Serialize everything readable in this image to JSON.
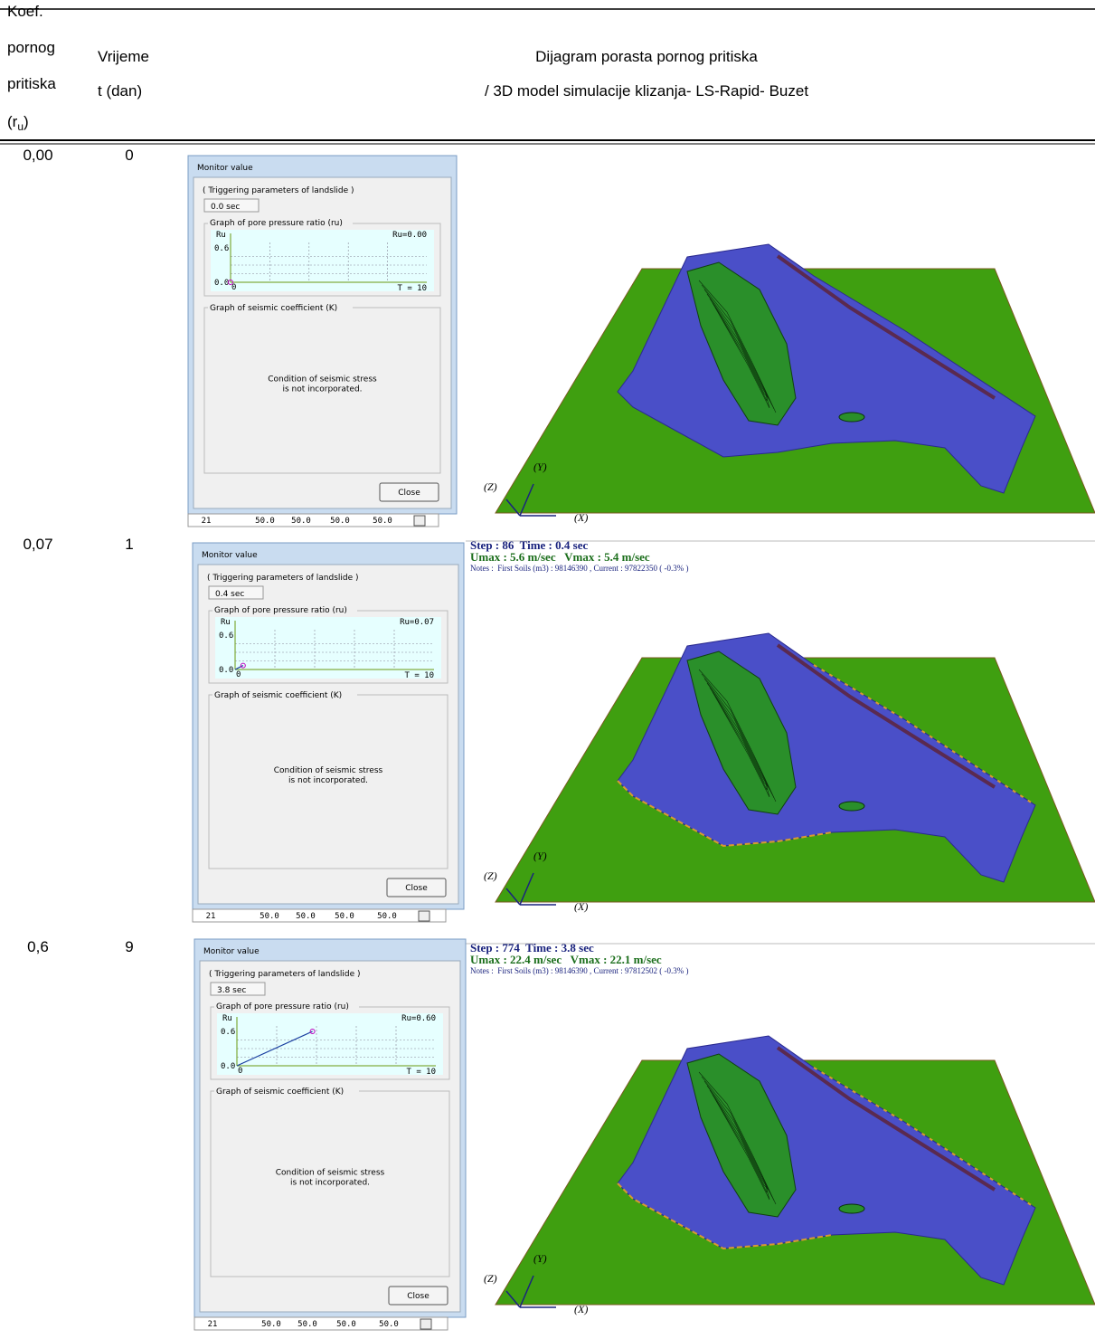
{
  "header": {
    "col1": [
      "Koef.",
      "pornog",
      "pritiska"
    ],
    "col1_symbol": {
      "open": "(",
      "base": "r",
      "sub": "u",
      "close": ")"
    },
    "col2": [
      "Vrijeme",
      "t (dan)"
    ],
    "col3": [
      "Dijagram porasta pornog pritiska",
      "/ 3D model simulacije klizanja- LS-Rapid- Buzet"
    ]
  },
  "dialog": {
    "title": "Monitor value",
    "trigger": "( Triggering parameters of landslide )",
    "ru_group": "Graph of pore pressure ratio (ru)",
    "ru_axis": "Ru",
    "ru_max_label": "0.6",
    "ru_min_label": "0.0",
    "t_min_label": "0",
    "t_max_label": "T = 10",
    "scale": {
      "t_max": 10,
      "ru_max": 0.6
    },
    "k_group": "Graph of seismic coefficient (K)",
    "k_message": [
      "Condition of seismic stress",
      "is not incorporated."
    ],
    "close": "Close",
    "strip": [
      "21",
      "50.0",
      "50.0",
      "50.0",
      "50.0"
    ]
  },
  "axes": {
    "y": "(Y)",
    "z": "(Z)",
    "x": "(X)"
  },
  "rows": [
    {
      "ru": "0,00",
      "t": "0",
      "time": "0.0 sec",
      "ru_label": "Ru=0.00",
      "point": {
        "t": 0,
        "ru": 0
      }
    },
    {
      "ru": "0,07",
      "t": "1",
      "time": "0.4 sec",
      "ru_label": "Ru=0.07",
      "point": {
        "t": 0.4,
        "ru": 0.07
      },
      "step": "Step : 86  Time : 0.4 sec",
      "speed": "Umax : 5.6 m/sec   Vmax : 5.4 m/sec",
      "notes": "Notes :  First Soils (m3) : 98146390 , Current : 97822350 ( -0.3% )"
    },
    {
      "ru": "0,6",
      "t": "9",
      "time": "3.8 sec",
      "ru_label": "Ru=0.60",
      "point": {
        "t": 3.8,
        "ru": 0.6
      },
      "step": "Step : 774  Time : 3.8 sec",
      "speed": "Umax : 22.4 m/sec   Vmax : 22.1 m/sec",
      "notes": "Notes :  First Soils (m3) : 98146390 , Current : 97812502 ( -0.3% )"
    }
  ]
}
